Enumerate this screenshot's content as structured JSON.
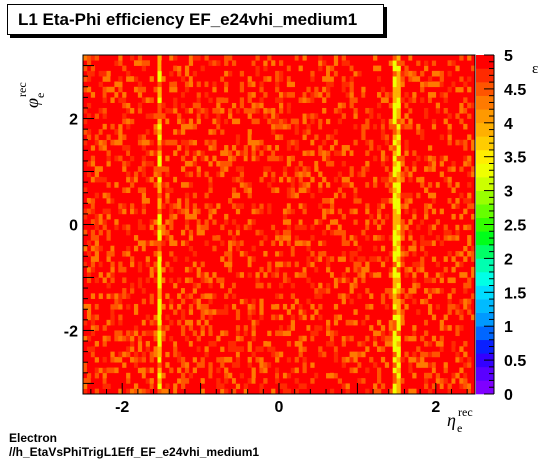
{
  "chart_data": {
    "type": "heatmap",
    "title": "L1 Eta-Phi efficiency EF_e24vhi_medium1",
    "xlabel": {
      "main": "η",
      "sub": "e",
      "sup": "rec"
    },
    "ylabel": {
      "main": "φ",
      "sub": "e",
      "sup": "rec"
    },
    "zlabel": "ε",
    "xlim": [
      -2.5,
      2.5
    ],
    "ylim": [
      -3.2,
      3.2
    ],
    "zlim": [
      0,
      5
    ],
    "x_ticks": [
      "-2",
      "0",
      "2"
    ],
    "y_ticks": [
      "-2",
      "0",
      "2"
    ],
    "z_ticks": [
      "0",
      "0.5",
      "1",
      "1.5",
      "2",
      "2.5",
      "3",
      "3.5",
      "4",
      "4.5",
      "5"
    ],
    "grid": false,
    "n_xbins": 100,
    "n_ybins": 64,
    "typical_value": 5,
    "background_values": [
      5,
      4.8,
      4.6,
      4.4,
      4.2
    ],
    "low_efficiency_bands": [
      {
        "eta": -1.52,
        "value": 3.3
      },
      {
        "eta": 1.52,
        "value": 3.3
      }
    ],
    "palette": [
      "#7f00ff",
      "#5a00ff",
      "#3300ff",
      "#0a20ff",
      "#0066ff",
      "#0099ff",
      "#00bbff",
      "#00ddff",
      "#00ffe6",
      "#00ffb0",
      "#00ff66",
      "#00ff1a",
      "#33ff00",
      "#66ff00",
      "#99ff00",
      "#ccff00",
      "#f0ff00",
      "#ffee00",
      "#ffcc00",
      "#ffb000",
      "#ff9900",
      "#ff7a00",
      "#ff5500",
      "#ff2a00",
      "#ff0000"
    ]
  },
  "footer": {
    "line1": "Electron",
    "line2": "//h_EtaVsPhiTrigL1Eff_EF_e24vhi_medium1"
  }
}
